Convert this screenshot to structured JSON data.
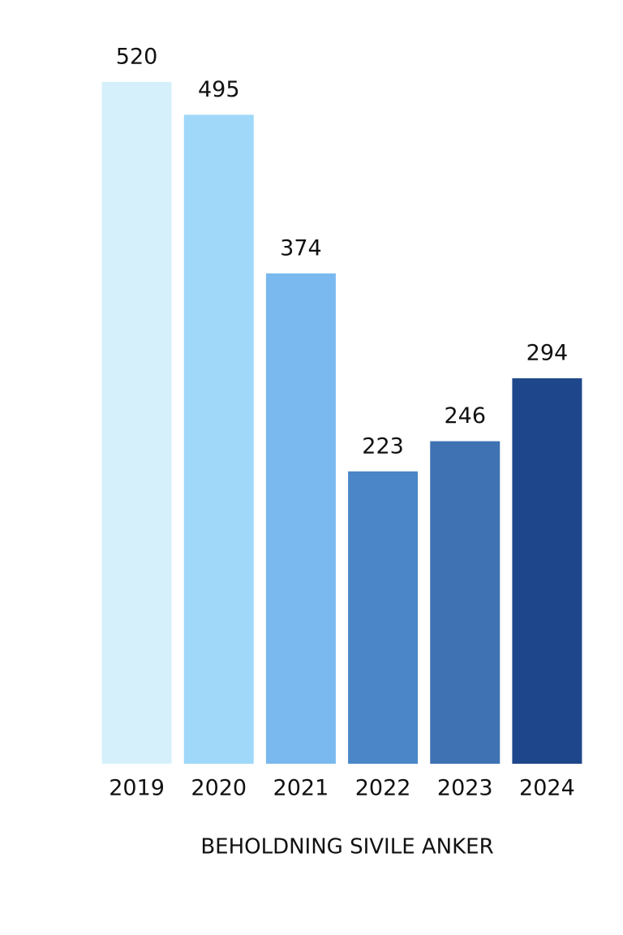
{
  "chart_data": {
    "type": "bar",
    "title": "BEHOLDNING SIVILE ANKER",
    "categories": [
      "2019",
      "2020",
      "2021",
      "2022",
      "2023",
      "2024"
    ],
    "values": [
      520,
      495,
      374,
      223,
      246,
      294
    ],
    "colors": [
      "#d6f0fb",
      "#a0d8fa",
      "#7ab9ef",
      "#4a86c8",
      "#3f72b3",
      "#1e468a"
    ]
  }
}
